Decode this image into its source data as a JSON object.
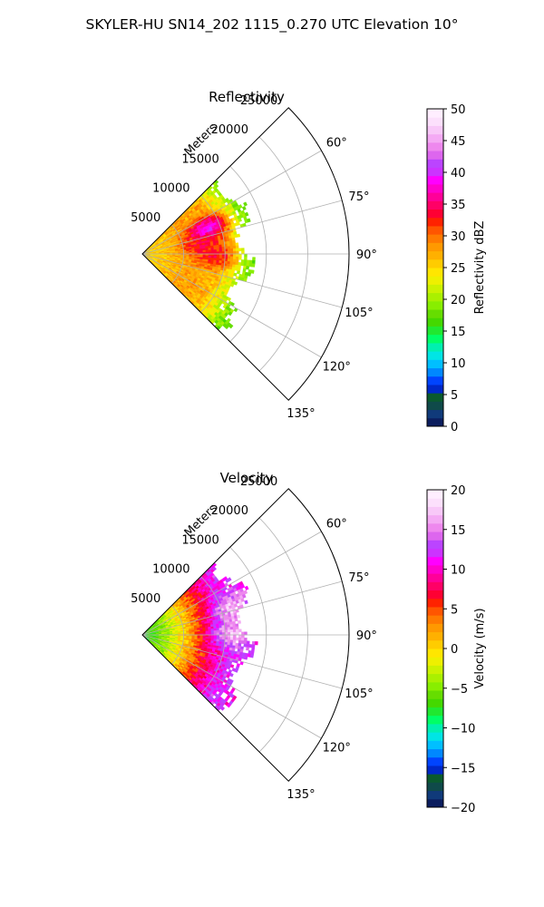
{
  "figure": {
    "title": "SKYLER-HU  SN14_202  1115_0.270 UTC Elevation 10°"
  },
  "chart_data": [
    {
      "type": "heatmap",
      "subtype": "polar-sector",
      "title": "Reflectivity",
      "radial_axis_label": "Meters",
      "radial_ticks": [
        5000,
        10000,
        15000,
        20000,
        25000
      ],
      "radial_tick_labels": [
        "5000",
        "10000",
        "15000",
        "20000",
        "25000"
      ],
      "rlim": [
        0,
        25000
      ],
      "angle_ticks_deg": [
        60,
        75,
        90,
        105,
        120,
        135
      ],
      "angle_tick_labels": [
        "60°",
        "75°",
        "90°",
        "105°",
        "120°",
        "135°"
      ],
      "theta_range_deg": [
        45,
        135
      ],
      "grid": true,
      "data_extent_m": 14000,
      "colorbar": {
        "label": "Reflectivity dBZ",
        "range": [
          0,
          50
        ],
        "ticks": [
          0,
          5,
          10,
          15,
          20,
          25,
          30,
          35,
          40,
          45,
          50
        ],
        "tick_labels": [
          "0",
          "5",
          "10",
          "15",
          "20",
          "25",
          "30",
          "35",
          "40",
          "45",
          "50"
        ],
        "colors": [
          "#0b1d5e",
          "#103a7a",
          "#0f4a4a",
          "#0a5a2e",
          "#0028c8",
          "#0044ff",
          "#0088ff",
          "#00bfff",
          "#00e5e5",
          "#00f0b0",
          "#00ff66",
          "#20e830",
          "#44d800",
          "#66dd00",
          "#88ee00",
          "#aaf000",
          "#ccf200",
          "#eef000",
          "#ffe600",
          "#ffcc00",
          "#ffb000",
          "#ff9900",
          "#ff7a00",
          "#ff5500",
          "#ff2200",
          "#ff0033",
          "#ff0066",
          "#ff0099",
          "#ff00cc",
          "#ff00ff",
          "#cc33ff",
          "#bb44ff",
          "#dd66ee",
          "#ee88ee",
          "#f4aaf4",
          "#f8c8f8",
          "#fce0fc",
          "#ffeeff"
        ]
      },
      "field_profile": [
        {
          "range_m": 0,
          "value": 25
        },
        {
          "range_m": 3000,
          "value": 26
        },
        {
          "range_m": 6000,
          "value": 28
        },
        {
          "range_m": 9000,
          "value": 27
        },
        {
          "range_m": 12000,
          "value": 20
        },
        {
          "range_m": 14000,
          "value": 16
        }
      ],
      "hotspots": [
        {
          "range_m": 8500,
          "azimuth_deg": 69,
          "value": 40
        },
        {
          "range_m": 7500,
          "azimuth_deg": 82,
          "value": 34
        },
        {
          "range_m": 9000,
          "azimuth_deg": 92,
          "value": 33
        }
      ]
    },
    {
      "type": "heatmap",
      "subtype": "polar-sector",
      "title": "Velocity",
      "radial_axis_label": "Meters",
      "radial_ticks": [
        5000,
        10000,
        15000,
        20000,
        25000
      ],
      "radial_tick_labels": [
        "5000",
        "10000",
        "15000",
        "20000",
        "25000"
      ],
      "rlim": [
        0,
        25000
      ],
      "angle_ticks_deg": [
        60,
        75,
        90,
        105,
        120,
        135
      ],
      "angle_tick_labels": [
        "60°",
        "75°",
        "90°",
        "105°",
        "120°",
        "135°"
      ],
      "theta_range_deg": [
        45,
        135
      ],
      "grid": true,
      "data_extent_m": 14000,
      "colorbar": {
        "label": "Velocity (m/s)",
        "range": [
          -20,
          20
        ],
        "ticks": [
          -20,
          -15,
          -10,
          -5,
          0,
          5,
          10,
          15,
          20
        ],
        "tick_labels": [
          "−20",
          "−15",
          "−10",
          "−5",
          "0",
          "5",
          "10",
          "15",
          "20"
        ],
        "colors": [
          "#0b1d5e",
          "#103a7a",
          "#0f4a4a",
          "#0a5a2e",
          "#0028c8",
          "#0044ff",
          "#0088ff",
          "#00bfff",
          "#00e5e5",
          "#00f0b0",
          "#00ff66",
          "#20e830",
          "#44d800",
          "#66dd00",
          "#88ee00",
          "#aaf000",
          "#ccf200",
          "#eef000",
          "#ffe600",
          "#ffcc00",
          "#ffb000",
          "#ff9900",
          "#ff7a00",
          "#ff5500",
          "#ff2200",
          "#ff0033",
          "#ff0066",
          "#ff0099",
          "#ff00cc",
          "#ff00ff",
          "#cc33ff",
          "#bb44ff",
          "#dd66ee",
          "#ee88ee",
          "#f4aaf4",
          "#f8c8f8",
          "#fce0fc",
          "#ffeeff"
        ]
      },
      "field_profile": [
        {
          "range_m": 0,
          "value": -8
        },
        {
          "range_m": 2500,
          "value": -5
        },
        {
          "range_m": 5000,
          "value": 0
        },
        {
          "range_m": 8000,
          "value": 7
        },
        {
          "range_m": 11000,
          "value": 12
        },
        {
          "range_m": 14000,
          "value": 11
        }
      ],
      "hotspots": [
        {
          "range_m": 11500,
          "azimuth_deg": 74,
          "value": 17
        },
        {
          "range_m": 11000,
          "azimuth_deg": 90,
          "value": 17
        }
      ]
    }
  ]
}
